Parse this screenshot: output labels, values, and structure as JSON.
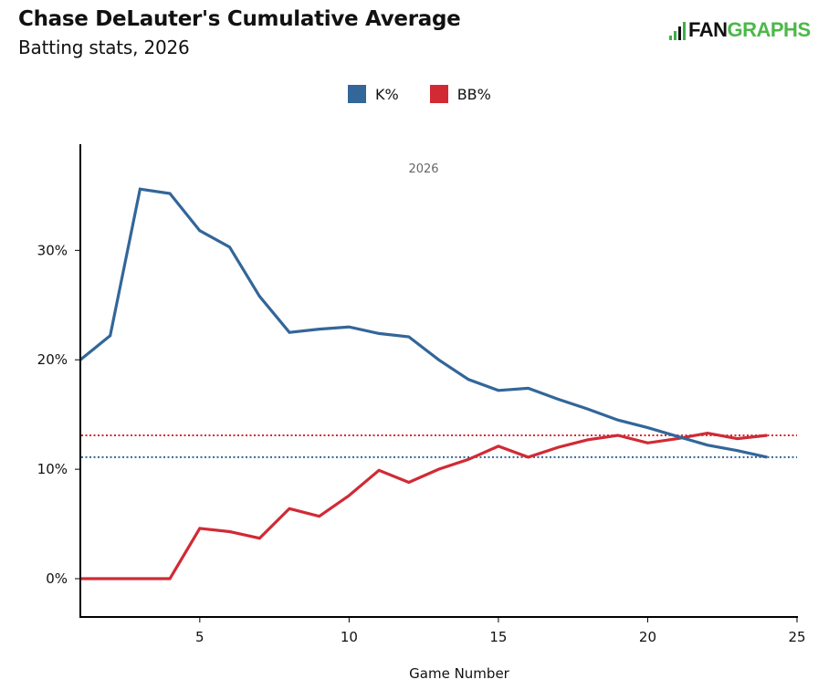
{
  "header": {
    "title": "Chase DeLauter's Cumulative Average",
    "subtitle": "Batting stats, 2026",
    "logo_text_dark": "FAN",
    "logo_text_green": "GRAPHS"
  },
  "colors": {
    "k_pct": "#336699",
    "bb_pct": "#d12a35",
    "logo_green": "#4cb848"
  },
  "chart_data": {
    "type": "line",
    "title": "Chase DeLauter's Cumulative Average",
    "subtitle": "Batting stats, 2026",
    "panel_label": "2026",
    "xlabel": "Game Number",
    "ylabel": "",
    "xlim": [
      1,
      25
    ],
    "ylim": [
      -3.5,
      39.7
    ],
    "x_ticks": [
      5,
      10,
      15,
      20,
      25
    ],
    "y_ticks": [
      0,
      10,
      20,
      30
    ],
    "y_tick_labels": [
      "0%",
      "10%",
      "20%",
      "30%"
    ],
    "grid": false,
    "legend_position": "top-center",
    "x": [
      1,
      2,
      3,
      4,
      5,
      6,
      7,
      8,
      9,
      10,
      11,
      12,
      13,
      14,
      15,
      16,
      17,
      18,
      19,
      20,
      21,
      22,
      23,
      24
    ],
    "series": [
      {
        "name": "K%",
        "color": "#336699",
        "values": [
          20.0,
          22.2,
          35.6,
          35.2,
          31.8,
          30.3,
          25.8,
          22.5,
          22.8,
          23.0,
          22.4,
          22.1,
          20.0,
          18.2,
          17.2,
          17.4,
          16.4,
          15.5,
          14.5,
          13.8,
          13.0,
          12.2,
          11.7,
          11.1
        ],
        "reference_line": 11.1
      },
      {
        "name": "BB%",
        "color": "#d12a35",
        "values": [
          0,
          0,
          0,
          0,
          4.6,
          4.3,
          3.7,
          6.4,
          5.7,
          7.6,
          9.9,
          8.8,
          10.0,
          10.9,
          12.1,
          11.1,
          12.0,
          12.7,
          13.1,
          12.4,
          12.8,
          13.3,
          12.8,
          13.1
        ],
        "reference_line": 13.1
      }
    ]
  }
}
